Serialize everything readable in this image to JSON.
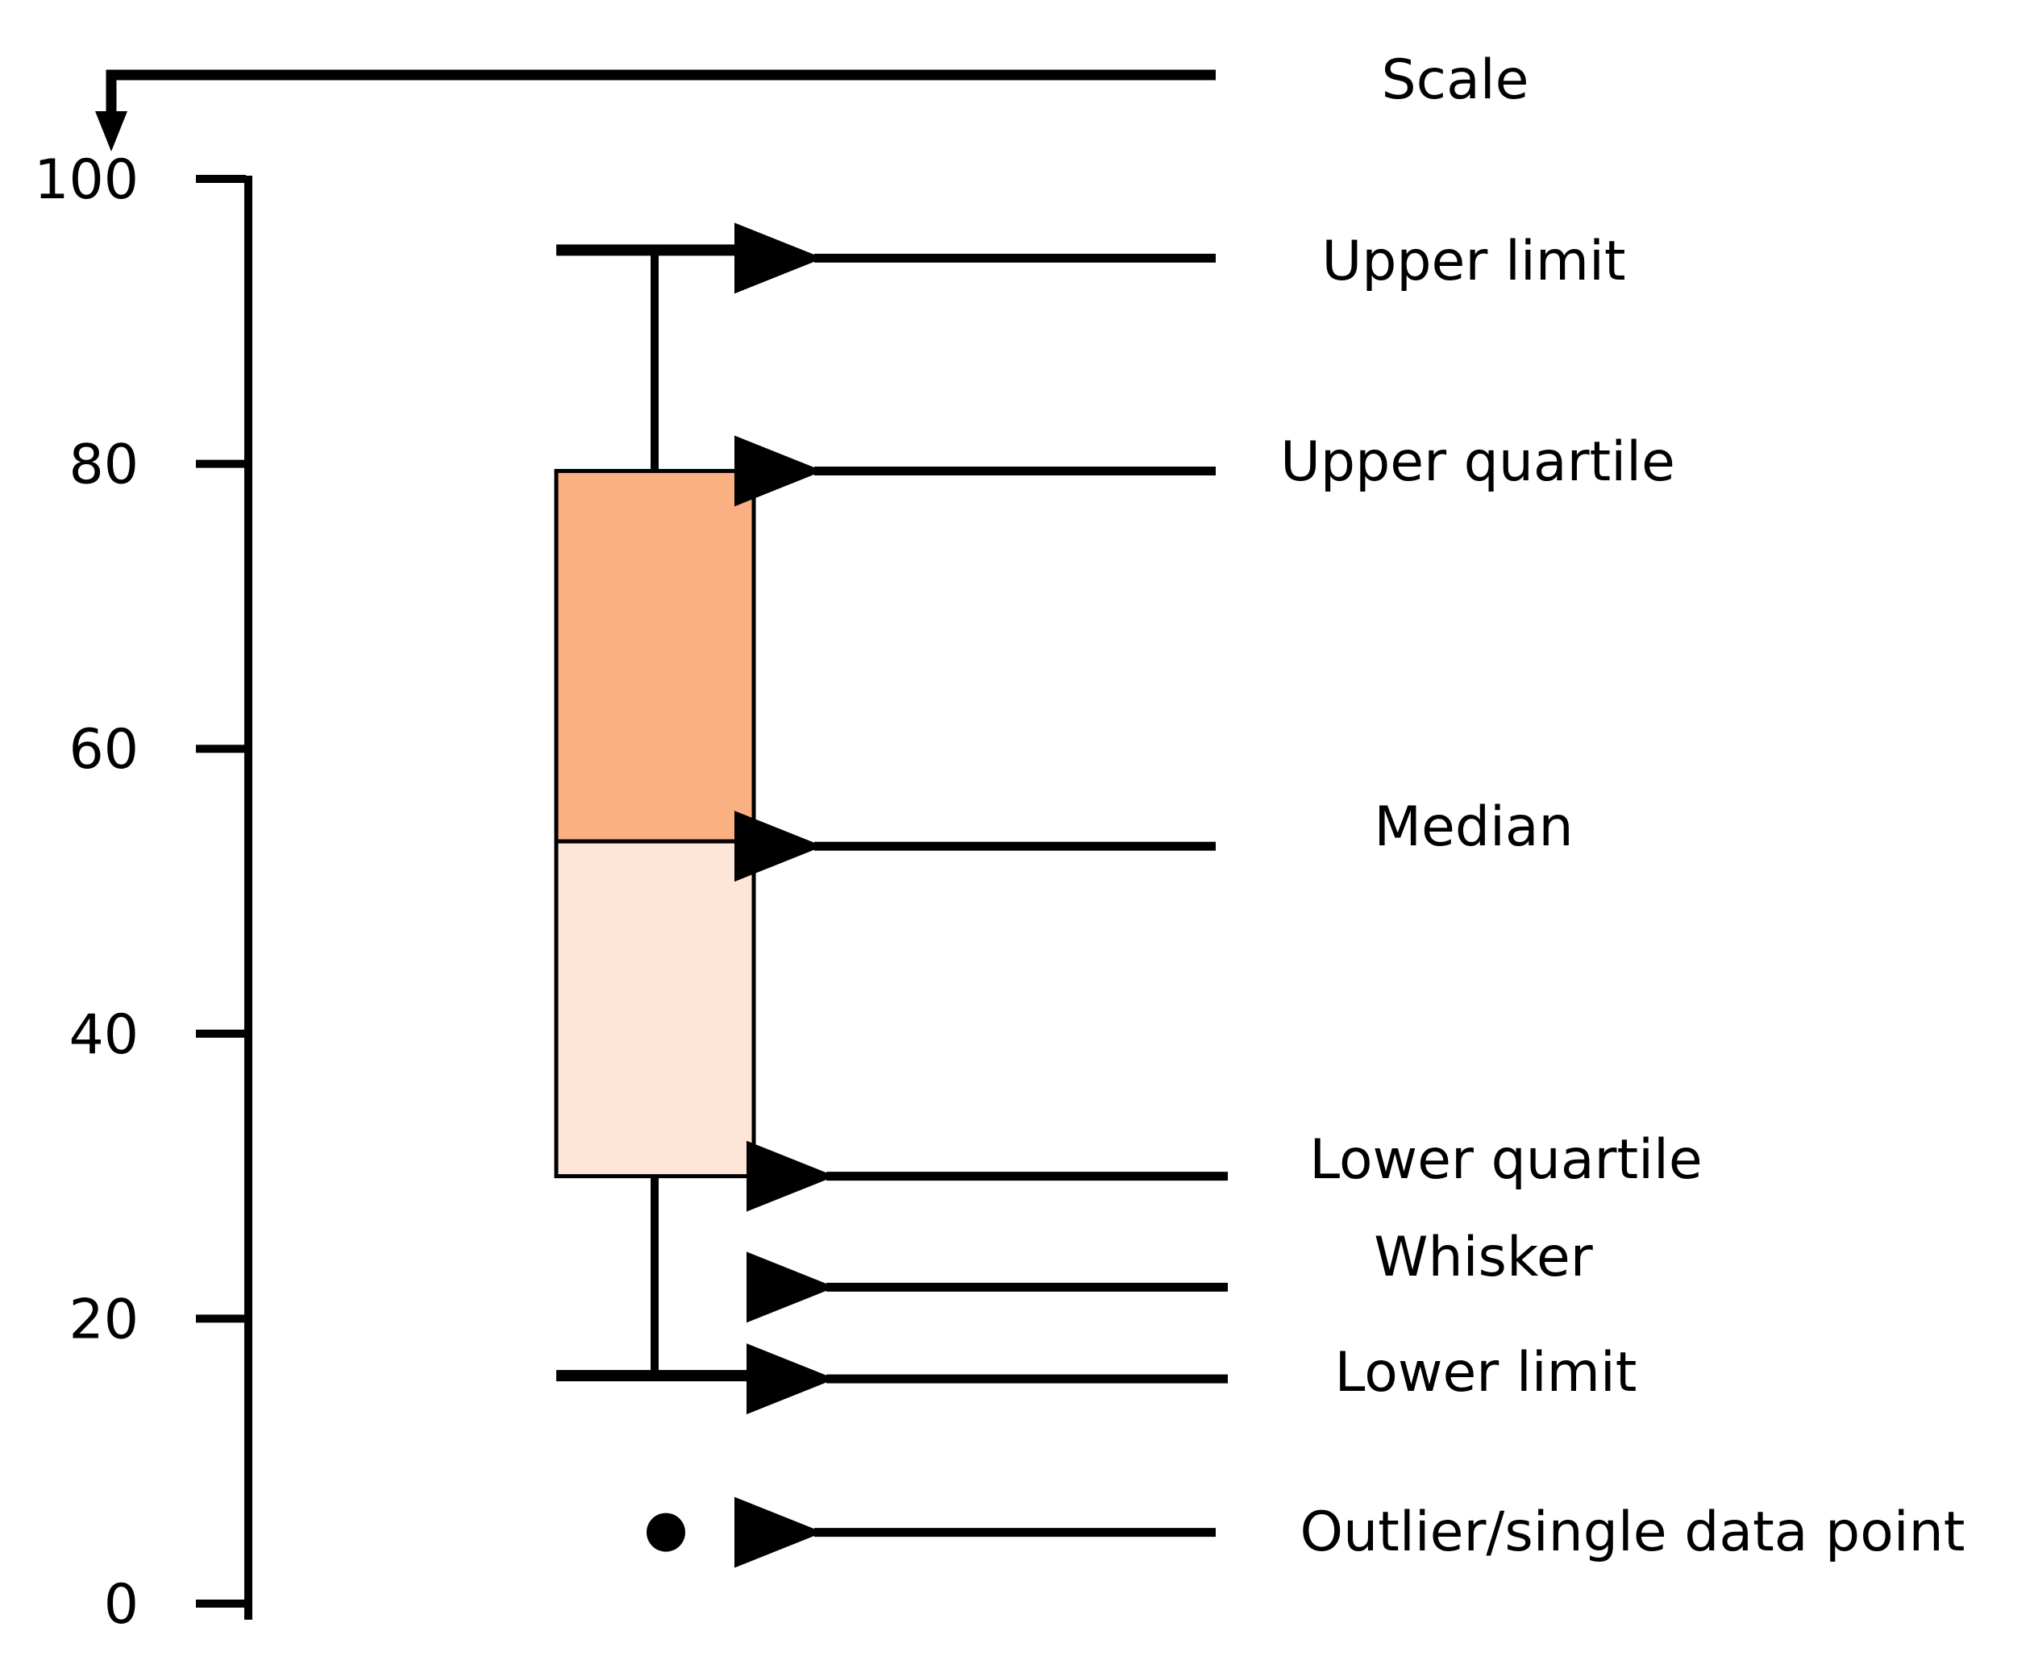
{
  "scale": {
    "min": 0,
    "max": 100,
    "ticks": [
      {
        "value": 0,
        "label": "0"
      },
      {
        "value": 20,
        "label": "20"
      },
      {
        "value": 40,
        "label": "40"
      },
      {
        "value": 60,
        "label": "60"
      },
      {
        "value": 80,
        "label": "80"
      },
      {
        "value": 100,
        "label": "100"
      }
    ]
  },
  "box": {
    "upper_limit": 95,
    "upper_quartile": 79.5,
    "median": 53.5,
    "lower_quartile": 30,
    "lower_limit": 16,
    "outlier": 5,
    "upper_fill": "#FBB081",
    "lower_fill": "#FDE6D7"
  },
  "labels": {
    "scale": "Scale",
    "upper_limit": "Upper limit",
    "upper_quartile": "Upper quartile",
    "median": "Median",
    "lower_quartile": "Lower quartile",
    "whisker": "Whisker",
    "lower_limit": "Lower limit",
    "outlier": "Outlier/single data point"
  }
}
